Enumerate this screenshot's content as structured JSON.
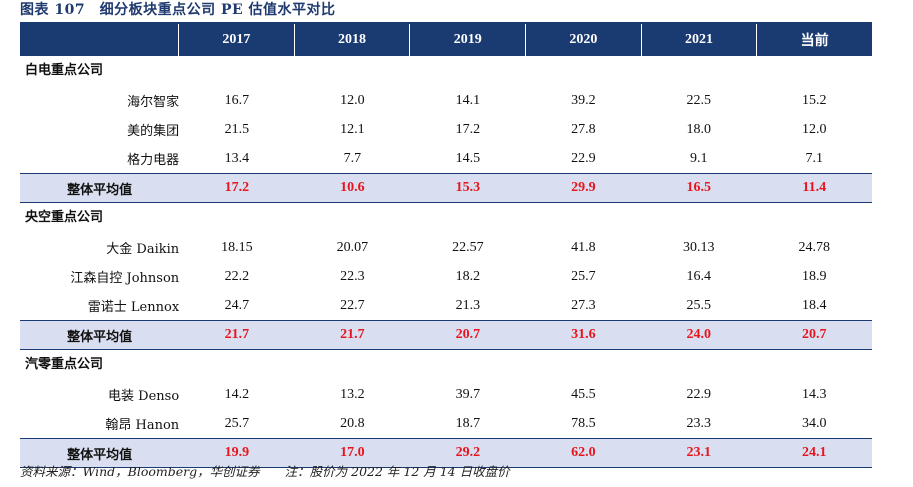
{
  "title": "图表 107　细分板块重点公司 PE 估值水平对比",
  "header": [
    "2017",
    "2018",
    "2019",
    "2020",
    "2021",
    "当前"
  ],
  "sections": [
    {
      "label": "白电重点公司",
      "rows": [
        {
          "name": "海尔智家",
          "values": [
            "16.7",
            "12.0",
            "14.1",
            "39.2",
            "22.5",
            "15.2"
          ]
        },
        {
          "name": "美的集团",
          "values": [
            "21.5",
            "12.1",
            "17.2",
            "27.8",
            "18.0",
            "12.0"
          ]
        },
        {
          "name": "格力电器",
          "values": [
            "13.4",
            "7.7",
            "14.5",
            "22.9",
            "9.1",
            "7.1"
          ]
        }
      ],
      "avg": {
        "name": "整体平均值",
        "values": [
          "17.2",
          "10.6",
          "15.3",
          "29.9",
          "16.5",
          "11.4"
        ]
      }
    },
    {
      "label": "央空重点公司",
      "rows": [
        {
          "name": "大金 Daikin",
          "values": [
            "18.15",
            "20.07",
            "22.57",
            "41.8",
            "30.13",
            "24.78"
          ]
        },
        {
          "name": "江森自控 Johnson",
          "values": [
            "22.2",
            "22.3",
            "18.2",
            "25.7",
            "16.4",
            "18.9"
          ]
        },
        {
          "name": "雷诺士 Lennox",
          "values": [
            "24.7",
            "22.7",
            "21.3",
            "27.3",
            "25.5",
            "18.4"
          ]
        }
      ],
      "avg": {
        "name": "整体平均值",
        "values": [
          "21.7",
          "21.7",
          "20.7",
          "31.6",
          "24.0",
          "20.7"
        ]
      }
    },
    {
      "label": "汽零重点公司",
      "rows": [
        {
          "name": "电装 Denso",
          "values": [
            "14.2",
            "13.2",
            "39.7",
            "45.5",
            "22.9",
            "14.3"
          ]
        },
        {
          "name": "翰昂 Hanon",
          "values": [
            "25.7",
            "20.8",
            "18.7",
            "78.5",
            "23.3",
            "34.0"
          ]
        }
      ],
      "avg": {
        "name": "整体平均值",
        "values": [
          "19.9",
          "17.0",
          "29.2",
          "62.0",
          "23.1",
          "24.1"
        ]
      }
    }
  ],
  "source": "资料来源：Wind，Bloomberg，华创证券　　注：股价为 2022 年 12 月 14 日收盘价"
}
